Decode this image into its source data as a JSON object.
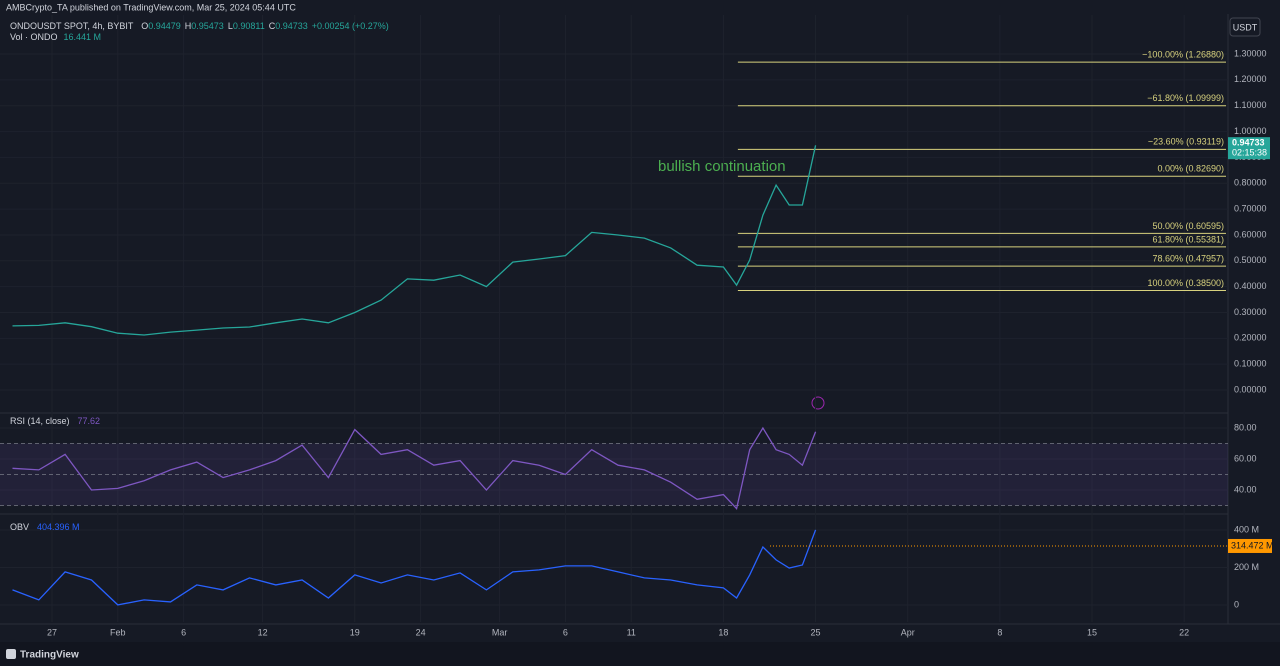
{
  "header": {
    "publisher": "AMBCrypto_TA published on TradingView.com, Mar 25, 2024 05:44 UTC",
    "brand": "TradingView"
  },
  "chart_data": [
    {
      "type": "line",
      "legend": "ONDOUSDT SPOT, 4h, BYBIT",
      "ohlc": [
        {
          "key": "O",
          "value": 0.94479
        },
        {
          "key": "H",
          "value": 0.95473
        },
        {
          "key": "L",
          "value": 0.90811
        },
        {
          "key": "C",
          "value": 0.94733
        }
      ],
      "change": "+0.00254 (+0.27%)",
      "volume_label": "Vol · ONDO",
      "volume_value": "16.441 M",
      "currency": "USDT",
      "x": [
        24,
        26,
        28,
        30,
        32,
        34,
        36,
        38,
        40,
        42,
        44,
        46,
        48,
        50,
        52,
        54,
        56,
        58,
        60,
        62,
        64,
        66,
        68,
        70,
        72,
        74,
        76,
        78,
        79,
        80,
        81,
        82,
        83,
        84,
        85
      ],
      "xlim": [
        23.66,
        116.1
      ],
      "xticks": [
        27,
        {
          "value": 32,
          "label": "Feb"
        },
        {
          "value": 37,
          "label": "6"
        },
        {
          "value": 43,
          "label": "12"
        },
        {
          "value": 50,
          "label": "19"
        },
        {
          "value": 55,
          "label": "24"
        },
        {
          "value": 61,
          "label": "Mar"
        },
        {
          "value": 66,
          "label": "6"
        },
        {
          "value": 71,
          "label": "11"
        },
        {
          "value": 78,
          "label": "18"
        },
        {
          "value": 85,
          "label": "25"
        },
        {
          "value": 92,
          "label": "Apr"
        },
        {
          "value": 99,
          "label": "8"
        },
        {
          "value": 106,
          "label": "15"
        },
        {
          "value": 113,
          "label": "22"
        }
      ],
      "ylim": [
        -0.085,
        1.451
      ],
      "yticks": [
        {
          "value": 0,
          "label": "0.00000"
        },
        {
          "value": 0.1,
          "label": "0.10000"
        },
        {
          "value": 0.2,
          "label": "0.20000"
        },
        {
          "value": 0.3,
          "label": "0.30000"
        },
        {
          "value": 0.4,
          "label": "0.40000"
        },
        {
          "value": 0.5,
          "label": "0.50000"
        },
        {
          "value": 0.6,
          "label": "0.60000"
        },
        {
          "value": 0.7,
          "label": "0.70000"
        },
        {
          "value": 0.8,
          "label": "0.80000"
        },
        {
          "value": 0.9,
          "label": "0.90000"
        },
        {
          "value": 1,
          "label": "1.00000"
        },
        {
          "value": 1.1,
          "label": "1.10000"
        },
        {
          "value": 1.2,
          "label": "1.20000"
        },
        {
          "value": 1.3,
          "label": "1.30000"
        }
      ],
      "series": [
        {
          "color": "#26a69a",
          "values": [
            0.248,
            0.25,
            0.26,
            0.245,
            0.22,
            0.213,
            0.224,
            0.232,
            0.24,
            0.244,
            0.26,
            0.275,
            0.26,
            0.3,
            0.348,
            0.43,
            0.425,
            0.445,
            0.4,
            0.495,
            0.507,
            0.52,
            0.61,
            0.6,
            0.588,
            0.55,
            0.483,
            0.476,
            0.406,
            0.503,
            0.677,
            0.793,
            0.716,
            0.716,
            0.947
          ]
        }
      ],
      "last_price": {
        "value": 0.94733,
        "label": "0.94733"
      },
      "countdown": "02:15:38",
      "fib_x": 79.1,
      "fib_color": "#d8d27e",
      "fib_levels": [
        {
          "value": 1.2688,
          "label": "−100.00% (1.26880)"
        },
        {
          "value": 1.09999,
          "label": "−61.80% (1.09999)"
        },
        {
          "value": 0.93119,
          "label": "−23.60% (0.93119)"
        },
        {
          "value": 0.8269,
          "label": "0.00% (0.82690)"
        },
        {
          "value": 0.60595,
          "label": "50.00% (0.60595)"
        },
        {
          "value": 0.55381,
          "label": "61.80% (0.55381)"
        },
        {
          "value": 0.47957,
          "label": "78.60% (0.47957)"
        },
        {
          "value": 0.385,
          "label": "100.00% (0.38500)"
        }
      ],
      "annotation": "bullish continuation"
    },
    {
      "type": "line",
      "legend": "RSI (14, close)",
      "legend_value": 77.62,
      "ylim": [
        25.8,
        88.4
      ],
      "yticks": [
        {
          "value": 40,
          "label": "40.00"
        },
        {
          "value": 60,
          "label": "60.00"
        },
        {
          "value": 80,
          "label": "80.00"
        }
      ],
      "levels": [
        30,
        50,
        70
      ],
      "series": [
        {
          "color": "#7e57c2",
          "values": [
            54,
            53,
            63,
            40,
            41,
            46,
            53,
            58,
            48,
            53,
            59,
            69,
            48,
            79,
            63,
            66,
            56,
            59,
            40,
            59,
            56,
            50,
            66,
            56,
            53,
            45,
            34,
            37,
            28,
            66,
            80,
            66,
            63,
            56,
            77.62
          ]
        }
      ]
    },
    {
      "type": "line",
      "legend": "OBV",
      "legend_value": "404.396 M",
      "ylim": [
        -91,
        469
      ],
      "yticks": [
        0,
        {
          "value": 200,
          "label": "200 M"
        },
        {
          "value": 400,
          "label": "400 M"
        }
      ],
      "series": [
        {
          "color": "#2962ff",
          "values": [
            80,
            27,
            176,
            133,
            0,
            27,
            16,
            107,
            80,
            144,
            107,
            133,
            37,
            160,
            117,
            160,
            133,
            171,
            80,
            176,
            187,
            208,
            208,
            176,
            144,
            133,
            107,
            91,
            37,
            160,
            309,
            240,
            197,
            213,
            400
          ]
        }
      ],
      "marker": {
        "value": 314.472,
        "label": "314.472 M",
        "color": "#ff9800"
      }
    }
  ]
}
